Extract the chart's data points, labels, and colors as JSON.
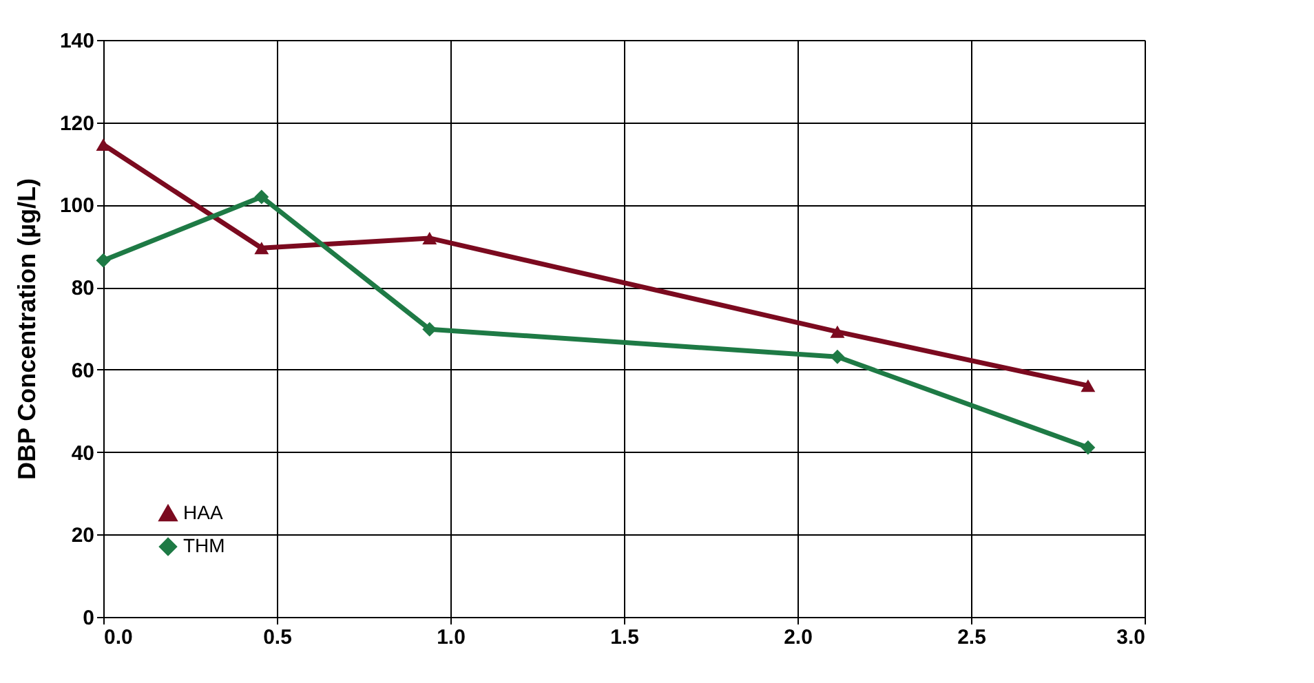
{
  "chart_data": {
    "type": "line",
    "ylabel": "DBP Concentration (µg/L)",
    "xlim": [
      0,
      3.0
    ],
    "xticks": [
      {
        "value": 0,
        "label": "0.0"
      },
      0.5,
      {
        "value": 1,
        "label": "1.0"
      },
      1.5,
      {
        "value": 2,
        "label": "2.0"
      },
      2.5,
      {
        "value": 3,
        "label": "3.0"
      }
    ],
    "ylim": [
      0,
      140
    ],
    "yticks": [
      0,
      20,
      40,
      60,
      80,
      100,
      120,
      140
    ],
    "grid": true,
    "legend": "bottom left",
    "series": [
      {
        "name": "HAA",
        "color": "#7b0a1f",
        "marker": "triangle",
        "x": [
          0,
          0.456,
          0.94,
          2.115,
          2.837
        ],
        "values": [
          114.6,
          89.5,
          91.9,
          69.2,
          56.1
        ]
      },
      {
        "name": "THM",
        "color": "#1e7a45",
        "marker": "diamond",
        "x": [
          0,
          0.456,
          0.94,
          2.115,
          2.837
        ],
        "values": [
          86.5,
          101.9,
          69.8,
          63.1,
          41.1
        ]
      }
    ]
  }
}
